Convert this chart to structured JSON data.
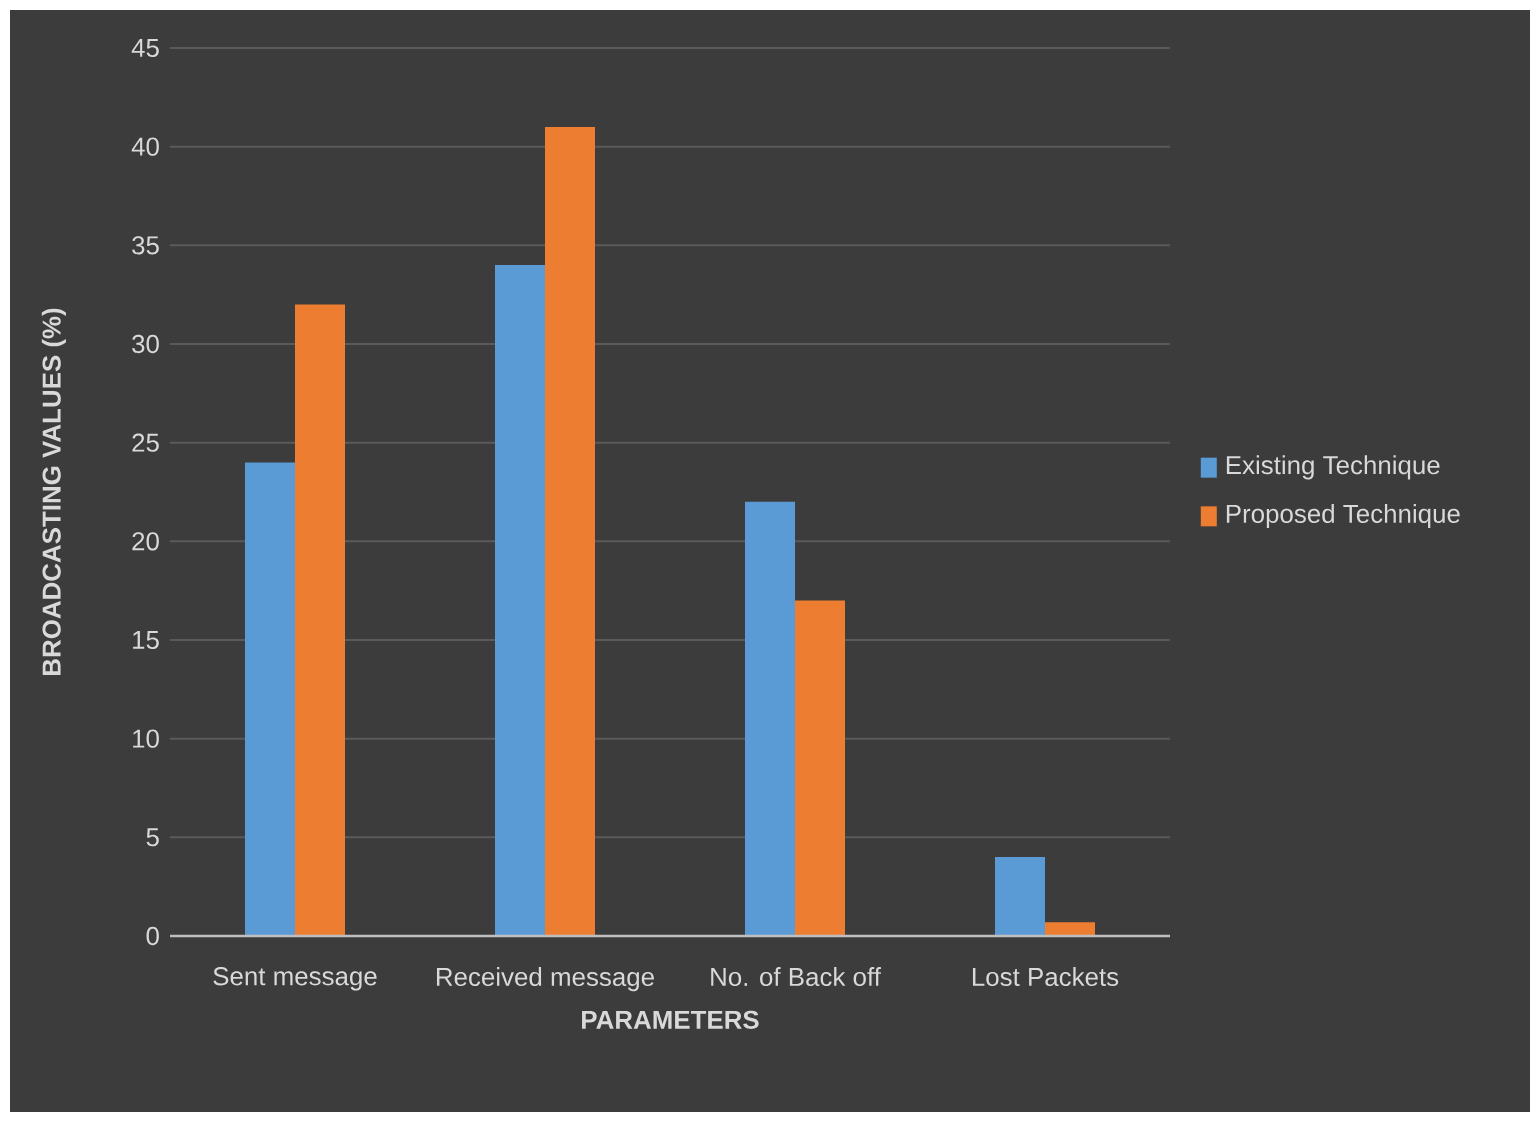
{
  "chart_data": {
    "type": "bar",
    "xlabel": "PARAMETERS",
    "ylabel": "BROADCASTING VALUES (%)",
    "categories": [
      "Sent message",
      "Received message",
      "No. of Back off",
      "Lost Packets"
    ],
    "series": [
      {
        "name": "Existing Technique",
        "color": "#5b9bd5",
        "values": [
          24,
          34,
          22,
          4
        ]
      },
      {
        "name": "Proposed Technique",
        "color": "#ed7d31",
        "values": [
          32,
          41,
          17,
          0.7
        ]
      }
    ],
    "ylim": [
      0,
      45
    ],
    "yticks": [
      0,
      5,
      10,
      15,
      20,
      25,
      30,
      35,
      40,
      45
    ],
    "grid": "y",
    "legend": "right"
  }
}
